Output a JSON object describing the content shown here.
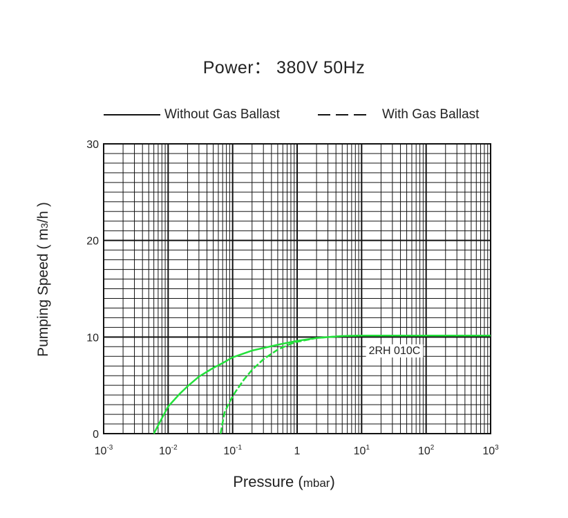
{
  "chart_data": {
    "type": "line",
    "title": "Power： 380V 50Hz",
    "xlabel": "Pressure",
    "xunit": "mbar",
    "ylabel": "Pumping Speed ( m3/h )",
    "xscale": "log",
    "xlim": [
      0.001,
      1000
    ],
    "ylim": [
      0,
      30
    ],
    "x_ticks": [
      {
        "base": "10",
        "exp": "-3"
      },
      {
        "base": "10",
        "exp": "-2"
      },
      {
        "base": "10",
        "exp": "-1"
      },
      {
        "base": "1",
        "exp": ""
      },
      {
        "base": "10",
        "exp": "1"
      },
      {
        "base": "10",
        "exp": "2"
      },
      {
        "base": "10",
        "exp": "3"
      }
    ],
    "y_ticks": [
      "0",
      "10",
      "20",
      "30"
    ],
    "grid": true,
    "legend_placement": "top",
    "legend": [
      {
        "label": "Without Gas Ballast",
        "style": "solid"
      },
      {
        "label": "With Gas Ballast",
        "style": "dashed"
      }
    ],
    "annotation": "2RH 010C",
    "series": [
      {
        "style": "solid",
        "color": "#22e03a",
        "x": [
          0.006,
          0.008,
          0.01,
          0.015,
          0.02,
          0.03,
          0.05,
          0.07,
          0.1,
          0.2,
          0.5,
          1,
          2,
          5,
          10,
          100,
          1000
        ],
        "y": [
          0,
          1.6,
          2.8,
          4.1,
          4.9,
          5.9,
          6.8,
          7.3,
          7.9,
          8.6,
          9.2,
          9.6,
          9.9,
          10.1,
          10.15,
          10.15,
          10.15
        ]
      },
      {
        "style": "dashed",
        "color": "#22e03a",
        "x": [
          0.065,
          0.075,
          0.09,
          0.11,
          0.15,
          0.2,
          0.3,
          0.5,
          0.8,
          1,
          2,
          5,
          10,
          100,
          1000
        ],
        "y": [
          0,
          2.2,
          3.3,
          4.3,
          5.6,
          6.6,
          7.7,
          8.7,
          9.3,
          9.5,
          9.9,
          10.1,
          10.15,
          10.15,
          10.15
        ]
      }
    ]
  }
}
